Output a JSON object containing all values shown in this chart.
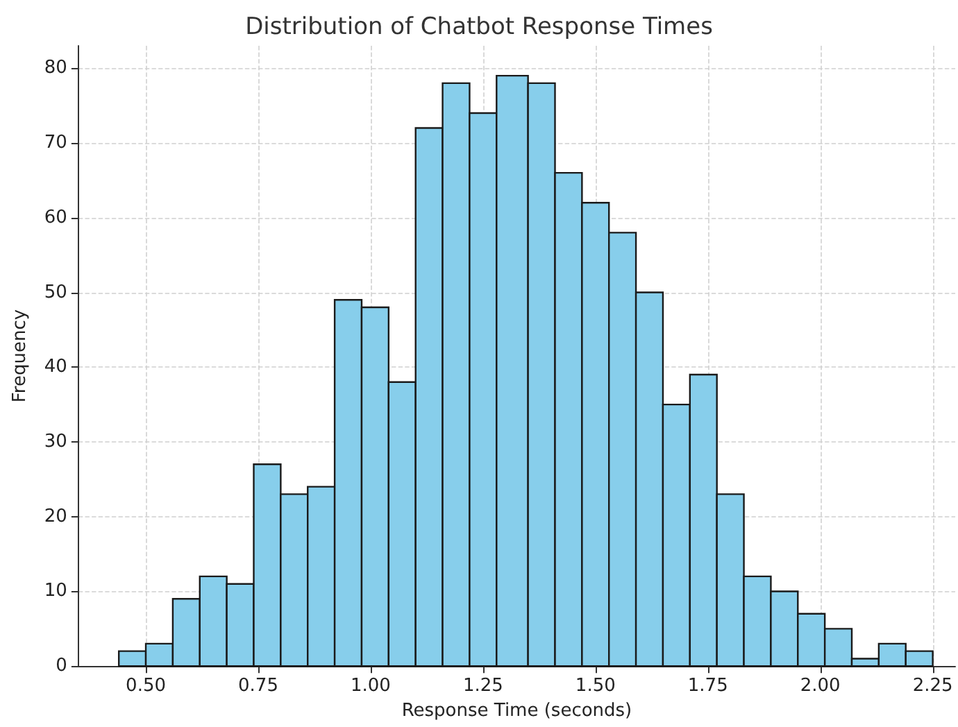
{
  "chart_data": {
    "type": "histogram",
    "title": "Distribution of Chatbot Response Times",
    "xlabel": "Response Time (seconds)",
    "ylabel": "Frequency",
    "bins": [
      0.44,
      0.5,
      0.56,
      0.62,
      0.68,
      0.74,
      0.8,
      0.86,
      0.92,
      0.98,
      1.04,
      1.1,
      1.16,
      1.22,
      1.28,
      1.35,
      1.41,
      1.47,
      1.53,
      1.59,
      1.65,
      1.71,
      1.77,
      1.83,
      1.89,
      1.95,
      2.01,
      2.07,
      2.13,
      2.19,
      2.25
    ],
    "values": [
      2,
      3,
      9,
      12,
      11,
      27,
      23,
      24,
      49,
      48,
      38,
      72,
      78,
      74,
      79,
      78,
      66,
      62,
      58,
      50,
      35,
      39,
      23,
      12,
      10,
      7,
      5,
      1,
      3,
      2
    ],
    "color": "#87ceeb",
    "xlim": [
      0.35,
      2.3
    ],
    "xticks": [
      {
        "value": 0.5,
        "label": "0.50"
      },
      {
        "value": 0.75,
        "label": "0.75"
      },
      {
        "value": 1,
        "label": "1.00"
      },
      {
        "value": 1.25,
        "label": "1.25"
      },
      {
        "value": 1.5,
        "label": "1.50"
      },
      {
        "value": 1.75,
        "label": "1.75"
      },
      {
        "value": 2,
        "label": "2.00"
      },
      {
        "value": 2.25,
        "label": "2.25"
      }
    ],
    "ylim": [
      0,
      83
    ],
    "yticks": [
      0,
      10,
      20,
      30,
      40,
      50,
      60,
      70,
      80
    ],
    "grid": true
  }
}
